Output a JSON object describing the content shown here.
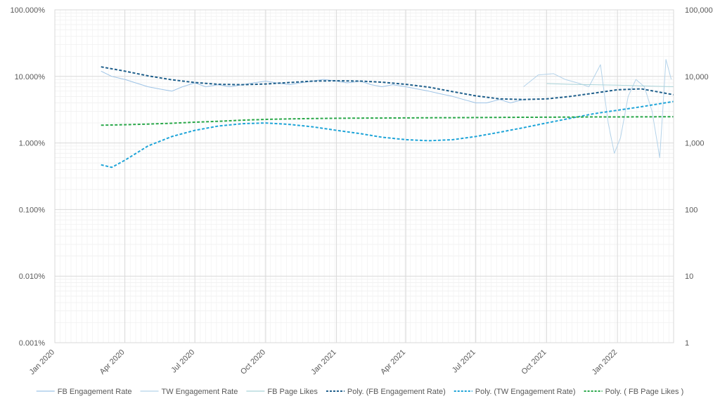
{
  "chart_data": {
    "type": "line",
    "title": "",
    "xlabel": "",
    "ylabel": "",
    "y2label": "",
    "x_ticks": [
      "Jan 2020",
      "Apr 2020",
      "Jul 2020",
      "Oct 2020",
      "Jan 2021",
      "Apr 2021",
      "Jul 2021",
      "Oct 2021",
      "Jan 2022"
    ],
    "x_tick_dates": [
      "2020-01-01",
      "2020-04-01",
      "2020-07-01",
      "2020-10-01",
      "2021-01-01",
      "2021-04-01",
      "2021-07-01",
      "2021-10-01",
      "2022-01-01"
    ],
    "x_range": [
      "2020-01-01",
      "2022-03-15"
    ],
    "y_left": {
      "scale": "log",
      "range": [
        0.001,
        100
      ],
      "unit": "%",
      "ticks": [
        0.001,
        0.01,
        0.1,
        1,
        10,
        100
      ],
      "tick_labels": [
        "0.001%",
        "0.010%",
        "0.100%",
        "1.000%",
        "10.000%",
        "100.000%"
      ]
    },
    "y_right": {
      "scale": "log",
      "range": [
        1,
        100000
      ],
      "ticks": [
        1,
        10,
        100,
        1000,
        10000,
        100000
      ],
      "tick_labels": [
        "1",
        "10",
        "100",
        "1,000",
        "10,000",
        "100,000"
      ]
    },
    "grid": true,
    "legend_position": "bottom",
    "series": [
      {
        "name": "FB Engagement Rate",
        "axis": "left",
        "color": "#9dc3e6",
        "style": "solid",
        "x": [
          "2020-03-01",
          "2020-03-15",
          "2020-04-01",
          "2020-04-15",
          "2020-05-01",
          "2020-05-15",
          "2020-06-01",
          "2020-06-15",
          "2020-07-01",
          "2020-07-15",
          "2020-08-01",
          "2020-08-15",
          "2020-09-01",
          "2020-09-15",
          "2020-10-01",
          "2020-10-15",
          "2020-11-01",
          "2020-11-15",
          "2020-12-01",
          "2020-12-15",
          "2021-01-01",
          "2021-01-15",
          "2021-02-01",
          "2021-02-15",
          "2021-03-01",
          "2021-03-15",
          "2021-04-01",
          "2021-04-15",
          "2021-05-01",
          "2021-05-15",
          "2021-06-01",
          "2021-06-15",
          "2021-07-01",
          "2021-07-15",
          "2021-08-01",
          "2021-08-15",
          "2021-09-01"
        ],
        "values": [
          12.0,
          10.0,
          9.0,
          8.0,
          7.0,
          6.5,
          6.0,
          7.0,
          8.0,
          7.0,
          7.5,
          7.0,
          7.5,
          8.0,
          8.5,
          8.0,
          7.5,
          8.0,
          8.5,
          9.0,
          8.5,
          8.0,
          8.5,
          7.5,
          7.0,
          7.5,
          7.0,
          6.5,
          6.0,
          5.5,
          5.0,
          4.5,
          4.0,
          4.0,
          4.5,
          4.0,
          4.5
        ]
      },
      {
        "name": "TW Engagement Rate",
        "axis": "left",
        "color": "#b4d3ea",
        "style": "solid",
        "x": [
          "2021-09-01",
          "2021-09-20",
          "2021-10-10",
          "2021-10-25",
          "2021-11-10",
          "2021-11-25",
          "2021-12-10",
          "2021-12-20",
          "2021-12-28",
          "2022-01-05",
          "2022-01-15",
          "2022-01-25",
          "2022-02-05",
          "2022-02-15",
          "2022-02-25",
          "2022-03-05",
          "2022-03-12"
        ],
        "values": [
          7.0,
          10.5,
          11.0,
          9.0,
          8.0,
          7.0,
          15.0,
          2.0,
          0.7,
          1.2,
          5.0,
          9.0,
          7.0,
          3.0,
          0.6,
          18.0,
          9.0
        ]
      },
      {
        "name": "FB Page Likes",
        "axis": "right",
        "color": "#a9d3d8",
        "style": "solid",
        "x": [
          "2021-10-01",
          "2021-11-01",
          "2021-12-01",
          "2022-01-01",
          "2022-02-01",
          "2022-03-15"
        ],
        "values": [
          7800,
          7600,
          7500,
          7400,
          7200,
          7000
        ]
      },
      {
        "name": "Poly. (FB Engagement Rate)",
        "axis": "left",
        "color": "#1f5f8b",
        "style": "dashed",
        "x": [
          "2020-03-01",
          "2020-04-01",
          "2020-05-01",
          "2020-06-01",
          "2020-07-01",
          "2020-08-01",
          "2020-09-01",
          "2020-10-01",
          "2020-11-01",
          "2020-12-01",
          "2021-01-01",
          "2021-02-01",
          "2021-03-01",
          "2021-04-01",
          "2021-05-01",
          "2021-06-01",
          "2021-07-01",
          "2021-08-01",
          "2021-09-01",
          "2021-10-01",
          "2021-11-01",
          "2021-12-01",
          "2022-01-01",
          "2022-02-01",
          "2022-03-15"
        ],
        "values": [
          13.9,
          12.0,
          10.2,
          8.9,
          8.1,
          7.6,
          7.5,
          7.7,
          8.1,
          8.5,
          8.6,
          8.5,
          8.2,
          7.6,
          6.9,
          5.9,
          5.1,
          4.6,
          4.5,
          4.6,
          5.0,
          5.6,
          6.3,
          6.5,
          5.3
        ]
      },
      {
        "name": "Poly. (TW Engagement Rate)",
        "axis": "left",
        "color": "#1ea4d8",
        "style": "dashed",
        "x": [
          "2020-03-01",
          "2020-03-15",
          "2020-04-01",
          "2020-05-01",
          "2020-06-01",
          "2020-07-01",
          "2020-08-01",
          "2020-09-01",
          "2020-10-01",
          "2020-11-01",
          "2020-12-01",
          "2021-01-01",
          "2021-02-01",
          "2021-03-01",
          "2021-04-01",
          "2021-05-01",
          "2021-06-01",
          "2021-07-01",
          "2021-08-01",
          "2021-09-01",
          "2021-10-01",
          "2021-11-01",
          "2021-12-01",
          "2022-01-01",
          "2022-02-01",
          "2022-03-15"
        ],
        "values": [
          0.47,
          0.43,
          0.55,
          0.9,
          1.25,
          1.55,
          1.8,
          1.95,
          2.0,
          1.9,
          1.75,
          1.55,
          1.38,
          1.22,
          1.12,
          1.08,
          1.12,
          1.25,
          1.45,
          1.7,
          2.0,
          2.35,
          2.75,
          3.1,
          3.5,
          4.2
        ]
      },
      {
        "name": "Poly. ( FB Page Likes )",
        "axis": "right",
        "color": "#2aa84a",
        "style": "dashed",
        "x": [
          "2020-03-01",
          "2020-04-01",
          "2020-05-01",
          "2020-06-01",
          "2020-07-01",
          "2020-08-01",
          "2020-09-01",
          "2020-10-01",
          "2020-11-01",
          "2020-12-01",
          "2021-01-01",
          "2021-02-01",
          "2021-03-01",
          "2021-04-01",
          "2021-05-01",
          "2021-06-01",
          "2021-07-01",
          "2021-08-01",
          "2021-09-01",
          "2021-10-01",
          "2021-11-01",
          "2021-12-01",
          "2022-01-01",
          "2022-02-01",
          "2022-03-15"
        ],
        "values": [
          1850,
          1880,
          1920,
          1980,
          2050,
          2120,
          2200,
          2260,
          2300,
          2330,
          2350,
          2360,
          2370,
          2380,
          2390,
          2400,
          2410,
          2420,
          2430,
          2440,
          2450,
          2460,
          2465,
          2470,
          2480
        ]
      }
    ]
  }
}
